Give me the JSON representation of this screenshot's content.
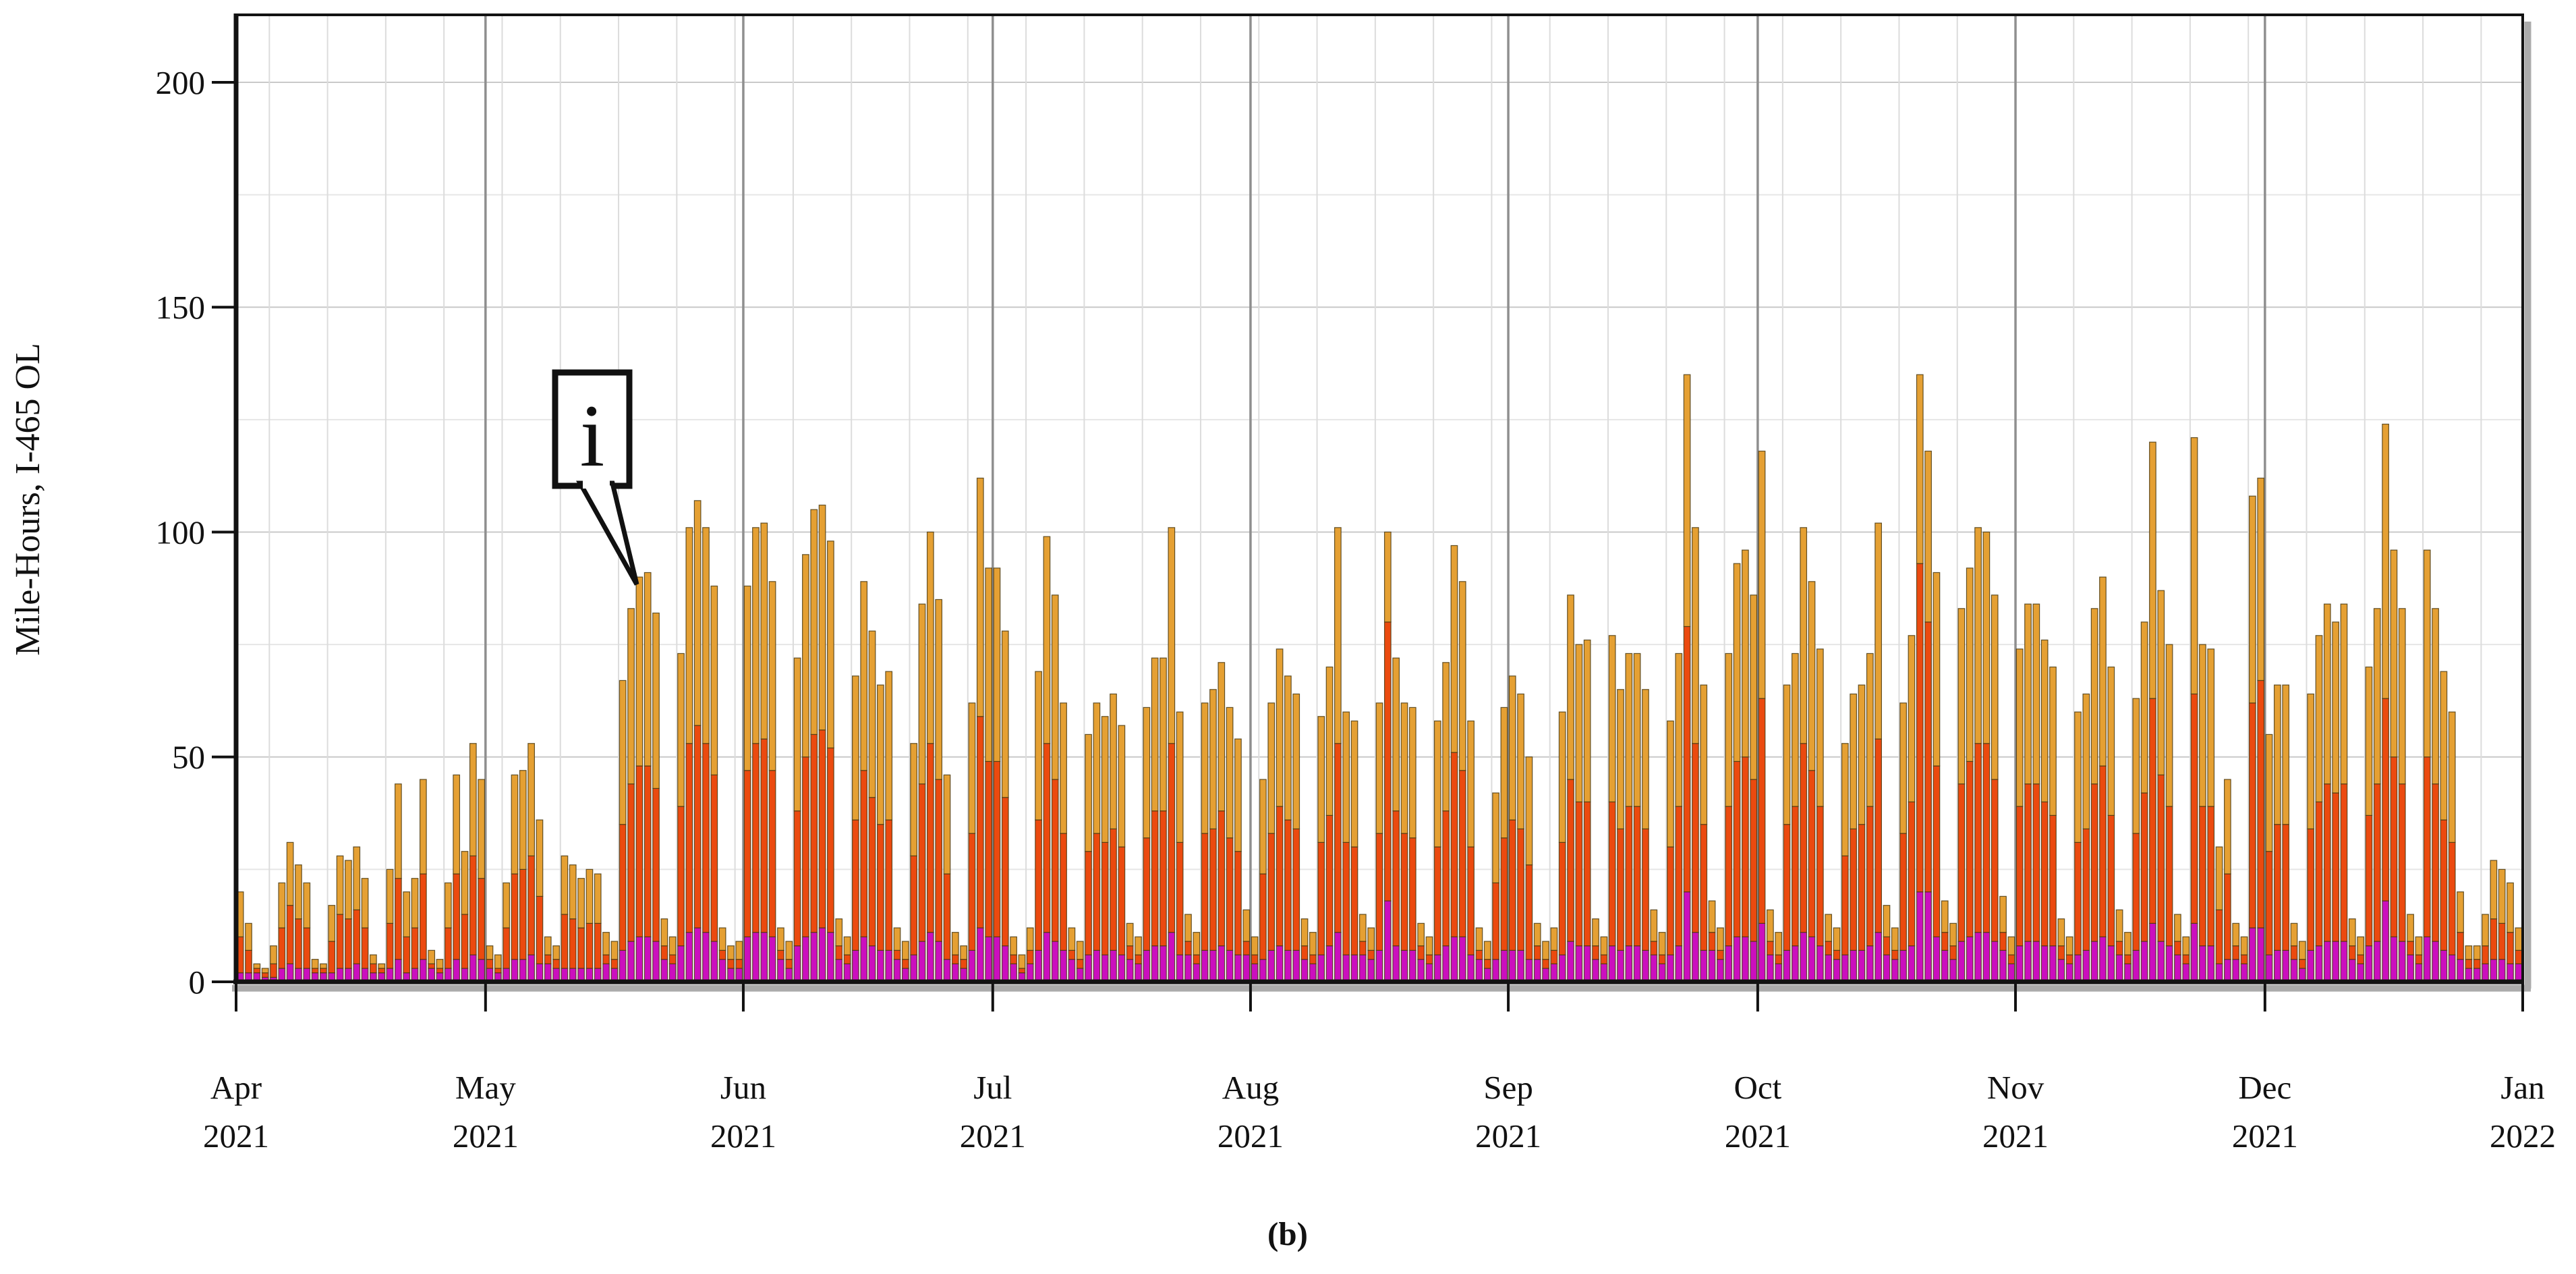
{
  "figure": {
    "caption": "(b)"
  },
  "y_axis": {
    "title": "Mile-Hours, I-465 OL",
    "tick_labels": [
      "0",
      "50",
      "100",
      "150",
      "200"
    ]
  },
  "x_axis": {
    "tick_labels": [
      {
        "month": "Apr",
        "year": "2021"
      },
      {
        "month": "May",
        "year": "2021"
      },
      {
        "month": "Jun",
        "year": "2021"
      },
      {
        "month": "Jul",
        "year": "2021"
      },
      {
        "month": "Aug",
        "year": "2021"
      },
      {
        "month": "Sep",
        "year": "2021"
      },
      {
        "month": "Oct",
        "year": "2021"
      },
      {
        "month": "Nov",
        "year": "2021"
      },
      {
        "month": "Dec",
        "year": "2021"
      },
      {
        "month": "Jan",
        "year": "2022"
      }
    ]
  },
  "colors": {
    "gold": "#E5A033",
    "red": "#EB4A0F",
    "magenta": "#CB0FBE",
    "bar_border": "#4a3a12",
    "frame": "#121212",
    "month_line": "#8f8f8f",
    "week_line": "#dcdcdc",
    "grid_minor": "#e6e6e6",
    "grid_major": "#c9c9c9",
    "shadow": "#ababab",
    "annotation_border": "#111111"
  },
  "chart_data": {
    "type": "bar",
    "stacked": true,
    "title": "",
    "xlabel": "",
    "ylabel": "Mile-Hours, I-465 OL",
    "ylim": [
      0,
      215
    ],
    "yticks": [
      0,
      50,
      100,
      150,
      200
    ],
    "grid": true,
    "legend": "none",
    "x_start_date": "2021-04-01",
    "x_end_date": "2022-01-01",
    "days": 275,
    "month_tick_day_offsets": [
      0,
      30,
      61,
      91,
      122,
      153,
      183,
      214,
      244,
      275
    ],
    "annotation": {
      "label": "i",
      "target_date": "2021-05-19",
      "target_day_index": 48,
      "target_value": 90
    },
    "series": [
      {
        "name": "bottom segment (magenta)",
        "color": "#CB0FBE",
        "values": [
          2,
          2,
          2,
          1,
          1,
          3,
          4,
          3,
          3,
          2,
          2,
          2,
          3,
          3,
          4,
          3,
          2,
          2,
          3,
          5,
          2,
          3,
          5,
          3,
          2,
          3,
          5,
          3,
          6,
          5,
          3,
          2,
          3,
          5,
          5,
          6,
          4,
          4,
          3,
          3,
          3,
          3,
          3,
          3,
          4,
          3,
          7,
          9,
          10,
          10,
          9,
          5,
          4,
          8,
          11,
          12,
          11,
          9,
          5,
          3,
          3,
          10,
          11,
          11,
          10,
          5,
          3,
          8,
          10,
          11,
          12,
          11,
          5,
          4,
          7,
          10,
          8,
          7,
          7,
          5,
          3,
          6,
          9,
          11,
          9,
          5,
          4,
          3,
          7,
          12,
          10,
          10,
          8,
          4,
          2,
          4,
          7,
          11,
          9,
          7,
          5,
          3,
          6,
          7,
          6,
          7,
          6,
          5,
          4,
          7,
          8,
          8,
          11,
          6,
          6,
          4,
          7,
          7,
          8,
          7,
          6,
          6,
          4,
          5,
          7,
          8,
          7,
          7,
          5,
          4,
          6,
          8,
          11,
          6,
          6,
          6,
          5,
          7,
          18,
          8,
          7,
          7,
          5,
          4,
          6,
          8,
          10,
          10,
          6,
          5,
          3,
          5,
          7,
          7,
          7,
          5,
          5,
          3,
          4,
          6,
          9,
          8,
          8,
          5,
          4,
          8,
          7,
          8,
          8,
          7,
          6,
          4,
          6,
          8,
          20,
          11,
          7,
          7,
          5,
          8,
          10,
          10,
          9,
          13,
          6,
          4,
          7,
          8,
          11,
          10,
          8,
          6,
          5,
          6,
          7,
          7,
          8,
          11,
          6,
          5,
          7,
          8,
          20,
          20,
          10,
          7,
          5,
          9,
          10,
          11,
          11,
          9,
          7,
          4,
          8,
          9,
          9,
          8,
          8,
          5,
          4,
          6,
          7,
          9,
          10,
          8,
          6,
          4,
          7,
          9,
          13,
          9,
          8,
          6,
          4,
          13,
          8,
          8,
          4,
          5,
          5,
          4,
          12,
          12,
          6,
          7,
          7,
          5,
          3,
          7,
          8,
          9,
          9,
          9,
          5,
          4,
          8,
          9,
          18,
          10,
          9,
          6,
          4,
          10,
          9,
          7,
          6,
          5,
          3,
          3,
          4,
          5,
          5,
          4,
          4
        ]
      },
      {
        "name": "middle segment (red-orange)",
        "color": "#EB4A0F",
        "values": [
          8,
          5,
          1,
          1,
          3,
          9,
          13,
          11,
          9,
          1,
          1,
          7,
          12,
          11,
          12,
          9,
          2,
          1,
          10,
          18,
          8,
          9,
          19,
          1,
          1,
          9,
          19,
          12,
          22,
          18,
          2,
          1,
          9,
          19,
          20,
          22,
          15,
          2,
          2,
          12,
          11,
          9,
          10,
          10,
          2,
          2,
          28,
          35,
          38,
          38,
          34,
          3,
          2,
          31,
          42,
          45,
          42,
          37,
          2,
          2,
          2,
          37,
          42,
          43,
          37,
          2,
          2,
          30,
          40,
          44,
          44,
          41,
          3,
          2,
          29,
          37,
          33,
          28,
          29,
          2,
          2,
          22,
          35,
          42,
          36,
          19,
          2,
          2,
          26,
          47,
          39,
          39,
          33,
          2,
          1,
          3,
          29,
          42,
          36,
          26,
          2,
          2,
          23,
          26,
          25,
          27,
          24,
          3,
          2,
          25,
          30,
          30,
          42,
          25,
          3,
          2,
          26,
          27,
          30,
          25,
          23,
          3,
          2,
          19,
          26,
          31,
          29,
          27,
          3,
          2,
          25,
          29,
          42,
          25,
          24,
          3,
          2,
          26,
          62,
          30,
          26,
          25,
          3,
          2,
          24,
          30,
          41,
          37,
          24,
          2,
          2,
          17,
          25,
          29,
          27,
          21,
          3,
          2,
          3,
          25,
          36,
          32,
          32,
          3,
          2,
          32,
          27,
          31,
          31,
          27,
          3,
          2,
          24,
          31,
          59,
          42,
          28,
          4,
          2,
          31,
          39,
          40,
          36,
          50,
          3,
          2,
          28,
          31,
          42,
          37,
          31,
          3,
          2,
          22,
          27,
          28,
          31,
          43,
          4,
          2,
          26,
          32,
          73,
          60,
          38,
          4,
          3,
          35,
          39,
          42,
          42,
          36,
          4,
          2,
          31,
          35,
          35,
          32,
          29,
          3,
          2,
          25,
          27,
          35,
          38,
          29,
          3,
          2,
          26,
          33,
          50,
          37,
          31,
          3,
          2,
          51,
          31,
          31,
          12,
          19,
          3,
          2,
          50,
          55,
          23,
          28,
          28,
          3,
          2,
          27,
          32,
          35,
          33,
          35,
          3,
          2,
          29,
          35,
          45,
          40,
          35,
          3,
          2,
          40,
          35,
          29,
          25,
          6,
          2,
          2,
          4,
          9,
          8,
          7,
          3
        ]
      },
      {
        "name": "top segment (gold)",
        "color": "#E5A033",
        "values": [
          10,
          6,
          1,
          1,
          4,
          10,
          14,
          12,
          10,
          2,
          1,
          8,
          13,
          13,
          14,
          11,
          2,
          1,
          12,
          21,
          10,
          11,
          21,
          3,
          2,
          10,
          22,
          14,
          25,
          22,
          3,
          3,
          10,
          22,
          22,
          25,
          17,
          4,
          3,
          13,
          12,
          11,
          12,
          11,
          5,
          4,
          32,
          39,
          42,
          43,
          39,
          6,
          4,
          34,
          48,
          50,
          48,
          42,
          5,
          3,
          4,
          41,
          48,
          48,
          42,
          5,
          4,
          34,
          45,
          50,
          50,
          46,
          6,
          4,
          32,
          42,
          37,
          31,
          33,
          5,
          4,
          25,
          40,
          47,
          40,
          22,
          5,
          3,
          29,
          53,
          43,
          43,
          37,
          4,
          3,
          5,
          33,
          46,
          41,
          29,
          5,
          4,
          26,
          29,
          28,
          30,
          27,
          5,
          4,
          29,
          34,
          34,
          48,
          29,
          6,
          5,
          29,
          31,
          33,
          29,
          25,
          7,
          4,
          21,
          29,
          35,
          32,
          30,
          6,
          5,
          28,
          33,
          48,
          29,
          28,
          6,
          5,
          29,
          20,
          34,
          29,
          29,
          5,
          4,
          28,
          33,
          46,
          42,
          28,
          5,
          4,
          20,
          29,
          32,
          30,
          24,
          5,
          4,
          5,
          29,
          41,
          35,
          36,
          6,
          4,
          37,
          31,
          34,
          34,
          31,
          7,
          5,
          28,
          34,
          56,
          48,
          31,
          7,
          5,
          34,
          44,
          46,
          41,
          55,
          7,
          5,
          31,
          34,
          48,
          42,
          35,
          6,
          5,
          25,
          30,
          31,
          34,
          48,
          7,
          5,
          29,
          37,
          42,
          38,
          43,
          7,
          5,
          39,
          43,
          48,
          47,
          41,
          8,
          4,
          35,
          40,
          40,
          36,
          33,
          6,
          4,
          29,
          30,
          39,
          42,
          33,
          7,
          5,
          30,
          38,
          57,
          41,
          36,
          6,
          4,
          57,
          36,
          35,
          14,
          21,
          5,
          4,
          46,
          45,
          26,
          31,
          31,
          5,
          4,
          30,
          37,
          40,
          38,
          40,
          6,
          4,
          33,
          39,
          61,
          46,
          39,
          6,
          4,
          46,
          39,
          33,
          29,
          9,
          3,
          3,
          7,
          13,
          12,
          11,
          5
        ]
      }
    ]
  }
}
